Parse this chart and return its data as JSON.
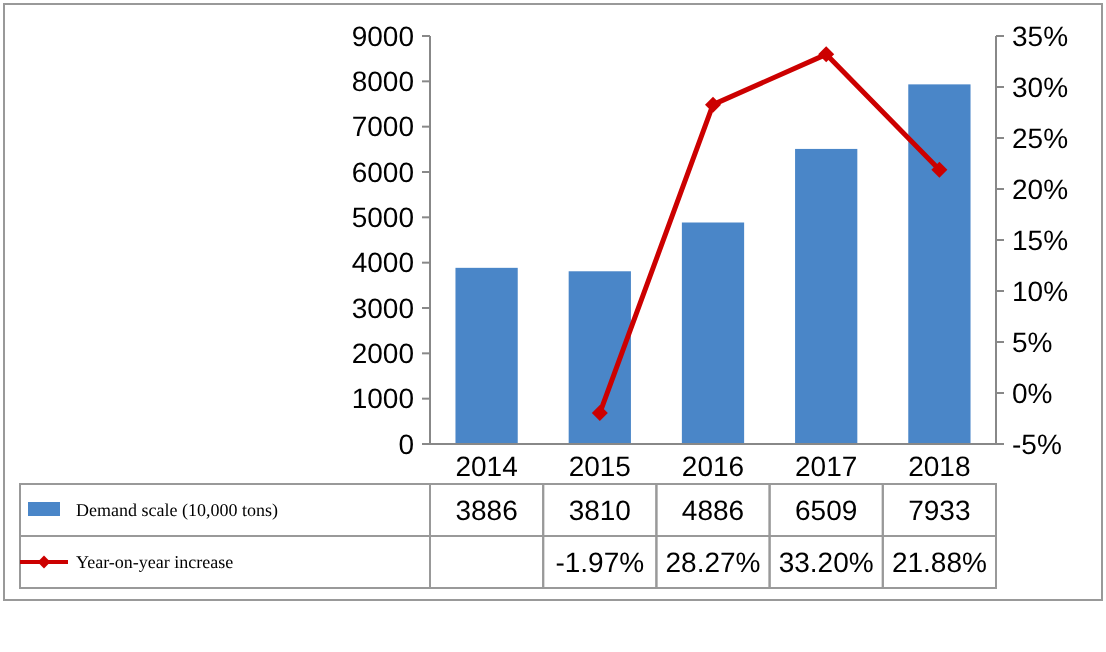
{
  "chart_data": {
    "type": "bar",
    "categories": [
      "2014",
      "2015",
      "2016",
      "2017",
      "2018"
    ],
    "series": [
      {
        "name": "Demand scale (10,000 tons)",
        "color": "#4a86c8",
        "values": [
          3886,
          3810,
          4886,
          6509,
          7933
        ],
        "value_labels": [
          "3886",
          "3810",
          "4886",
          "6509",
          "7933"
        ]
      },
      {
        "name": "Year-on-year increase",
        "type": "line",
        "axis": "y2",
        "color": "#cc0000",
        "marker": "diamond",
        "values": [
          null,
          -1.97,
          28.27,
          33.2,
          21.88
        ],
        "value_labels": [
          null,
          "-1.97%",
          "28.27%",
          "33.20%",
          "21.88%"
        ]
      }
    ],
    "ylim": [
      0,
      9000
    ],
    "yticks": [
      0,
      1000,
      2000,
      3000,
      4000,
      5000,
      6000,
      7000,
      8000,
      9000
    ],
    "y2lim": [
      -5,
      35
    ],
    "y2ticks": [
      {
        "value": -5,
        "label": "-5%"
      },
      {
        "value": 0,
        "label": "0%"
      },
      {
        "value": 5,
        "label": "5%"
      },
      {
        "value": 10,
        "label": "10%"
      },
      {
        "value": 15,
        "label": "15%"
      },
      {
        "value": 20,
        "label": "20%"
      },
      {
        "value": 25,
        "label": "25%"
      },
      {
        "value": 30,
        "label": "30%"
      },
      {
        "value": 35,
        "label": "35%"
      }
    ],
    "grid": false,
    "legend": "bottom"
  }
}
